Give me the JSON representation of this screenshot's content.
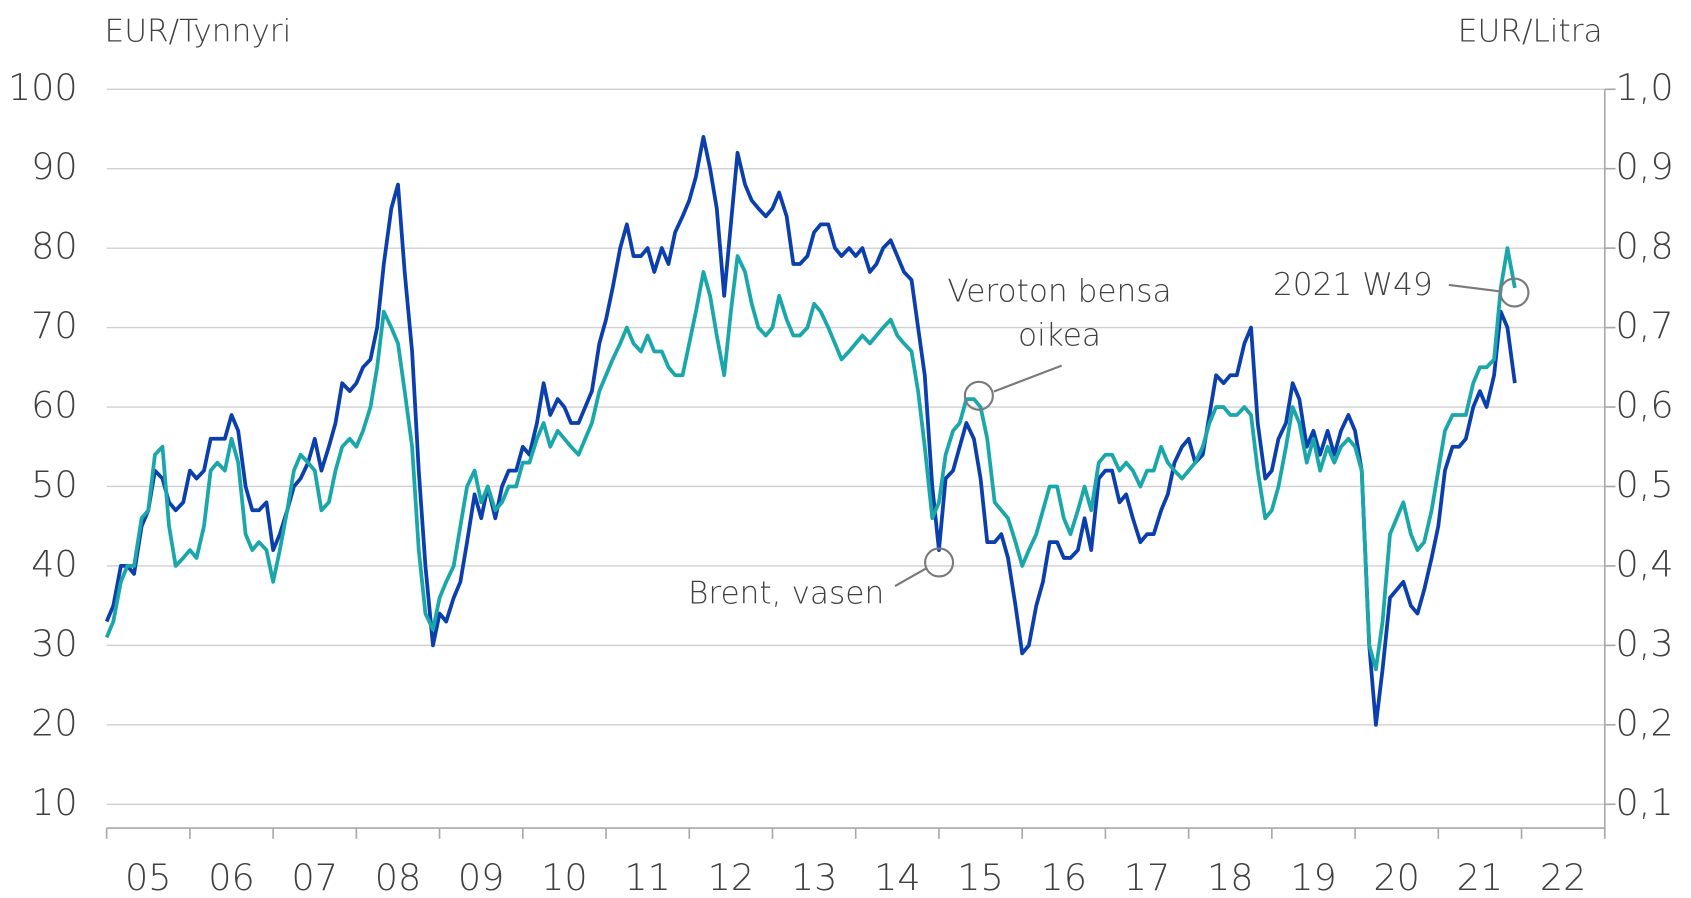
{
  "chart_data": {
    "type": "line",
    "y_label": "EUR/Tynnyri",
    "y2_label": "EUR/Litra",
    "xlim": [
      2005,
      2023
    ],
    "xticks": [
      {
        "value": 2005,
        "label": "05"
      },
      {
        "value": 2006,
        "label": "06"
      },
      {
        "value": 2007,
        "label": "07"
      },
      {
        "value": 2008,
        "label": "08"
      },
      {
        "value": 2009,
        "label": "09"
      },
      {
        "value": 2010,
        "label": "10"
      },
      {
        "value": 2011,
        "label": "11"
      },
      {
        "value": 2012,
        "label": "12"
      },
      {
        "value": 2013,
        "label": "13"
      },
      {
        "value": 2014,
        "label": "14"
      },
      {
        "value": 2015,
        "label": "15"
      },
      {
        "value": 2016,
        "label": "16"
      },
      {
        "value": 2017,
        "label": "17"
      },
      {
        "value": 2018,
        "label": "18"
      },
      {
        "value": 2019,
        "label": "19"
      },
      {
        "value": 2020,
        "label": "20"
      },
      {
        "value": 2021,
        "label": "21"
      },
      {
        "value": 2022,
        "label": "22"
      }
    ],
    "ylim": [
      7,
      100
    ],
    "yticks": [
      10,
      20,
      30,
      40,
      50,
      60,
      70,
      80,
      90,
      100
    ],
    "y2lim": [
      0.07,
      1.0
    ],
    "y2ticks": [
      {
        "value": 0.1,
        "label": "0,1"
      },
      {
        "value": 0.2,
        "label": "0,2"
      },
      {
        "value": 0.3,
        "label": "0,3"
      },
      {
        "value": 0.4,
        "label": "0,4"
      },
      {
        "value": 0.5,
        "label": "0,5"
      },
      {
        "value": 0.6,
        "label": "0,6"
      },
      {
        "value": 0.7,
        "label": "0,7"
      },
      {
        "value": 0.8,
        "label": "0,8"
      },
      {
        "value": 0.9,
        "label": "0,9"
      },
      {
        "value": 1.0,
        "label": "1,0"
      }
    ],
    "grid": true,
    "x": [
      2005.0,
      2005.08,
      2005.17,
      2005.25,
      2005.33,
      2005.42,
      2005.5,
      2005.58,
      2005.67,
      2005.75,
      2005.83,
      2005.92,
      2006.0,
      2006.08,
      2006.17,
      2006.25,
      2006.33,
      2006.42,
      2006.5,
      2006.58,
      2006.67,
      2006.75,
      2006.83,
      2006.92,
      2007.0,
      2007.08,
      2007.17,
      2007.25,
      2007.33,
      2007.42,
      2007.5,
      2007.58,
      2007.67,
      2007.75,
      2007.83,
      2007.92,
      2008.0,
      2008.08,
      2008.17,
      2008.25,
      2008.33,
      2008.42,
      2008.5,
      2008.58,
      2008.67,
      2008.75,
      2008.83,
      2008.92,
      2009.0,
      2009.08,
      2009.17,
      2009.25,
      2009.33,
      2009.42,
      2009.5,
      2009.58,
      2009.67,
      2009.75,
      2009.83,
      2009.92,
      2010.0,
      2010.08,
      2010.17,
      2010.25,
      2010.33,
      2010.42,
      2010.5,
      2010.58,
      2010.67,
      2010.75,
      2010.83,
      2010.92,
      2011.0,
      2011.08,
      2011.17,
      2011.25,
      2011.33,
      2011.42,
      2011.5,
      2011.58,
      2011.67,
      2011.75,
      2011.83,
      2011.92,
      2012.0,
      2012.08,
      2012.17,
      2012.25,
      2012.33,
      2012.42,
      2012.5,
      2012.58,
      2012.67,
      2012.75,
      2012.83,
      2012.92,
      2013.0,
      2013.08,
      2013.17,
      2013.25,
      2013.33,
      2013.42,
      2013.5,
      2013.58,
      2013.67,
      2013.75,
      2013.83,
      2013.92,
      2014.0,
      2014.08,
      2014.17,
      2014.25,
      2014.33,
      2014.42,
      2014.5,
      2014.58,
      2014.67,
      2014.75,
      2014.83,
      2014.92,
      2015.0,
      2015.08,
      2015.17,
      2015.25,
      2015.33,
      2015.42,
      2015.5,
      2015.58,
      2015.67,
      2015.75,
      2015.83,
      2015.92,
      2016.0,
      2016.08,
      2016.17,
      2016.25,
      2016.33,
      2016.42,
      2016.5,
      2016.58,
      2016.67,
      2016.75,
      2016.83,
      2016.92,
      2017.0,
      2017.08,
      2017.17,
      2017.25,
      2017.33,
      2017.42,
      2017.5,
      2017.58,
      2017.67,
      2017.75,
      2017.83,
      2017.92,
      2018.0,
      2018.08,
      2018.17,
      2018.25,
      2018.33,
      2018.42,
      2018.5,
      2018.58,
      2018.67,
      2018.75,
      2018.83,
      2018.92,
      2019.0,
      2019.08,
      2019.17,
      2019.25,
      2019.33,
      2019.42,
      2019.5,
      2019.58,
      2019.67,
      2019.75,
      2019.83,
      2019.92,
      2020.0,
      2020.08,
      2020.17,
      2020.25,
      2020.33,
      2020.42,
      2020.5,
      2020.58,
      2020.67,
      2020.75,
      2020.83,
      2020.92,
      2021.0,
      2021.08,
      2021.17,
      2021.25,
      2021.33,
      2021.42,
      2021.5,
      2021.58,
      2021.67,
      2021.75,
      2021.83,
      2021.92
    ],
    "series": [
      {
        "color": "#0b3fae",
        "axis": "y",
        "values": [
          33,
          35,
          40,
          40,
          39,
          45,
          47,
          52,
          51,
          48,
          47,
          48,
          52,
          51,
          52,
          56,
          56,
          56,
          59,
          57,
          50,
          47,
          47,
          48,
          42,
          44,
          47,
          50,
          51,
          53,
          56,
          52,
          55,
          58,
          63,
          62,
          63,
          65,
          66,
          70,
          78,
          85,
          88,
          77,
          67,
          52,
          40,
          30,
          34,
          33,
          36,
          38,
          43,
          49,
          46,
          50,
          46,
          50,
          52,
          52,
          55,
          54,
          58,
          63,
          59,
          61,
          60,
          58,
          58,
          60,
          62,
          68,
          71,
          75,
          80,
          83,
          79,
          79,
          80,
          77,
          80,
          78,
          82,
          84,
          86,
          89,
          94,
          90,
          85,
          74,
          83,
          92,
          88,
          86,
          85,
          84,
          85,
          87,
          84,
          78,
          78,
          79,
          82,
          83,
          83,
          80,
          79,
          80,
          79,
          80,
          77,
          78,
          80,
          81,
          79,
          77,
          76,
          70,
          64,
          50,
          42,
          51,
          52,
          55,
          58,
          56,
          51,
          43,
          43,
          44,
          41,
          35,
          29,
          30,
          35,
          38,
          43,
          43,
          41,
          41,
          42,
          46,
          42,
          51,
          52,
          52,
          48,
          49,
          46,
          43,
          44,
          44,
          47,
          49,
          53,
          55,
          56,
          53,
          54,
          59,
          64,
          63,
          64,
          64,
          68,
          70,
          58,
          51,
          52,
          56,
          58,
          63,
          61,
          55,
          57,
          54,
          57,
          54,
          57,
          59,
          57,
          52,
          30,
          20,
          27,
          36,
          37,
          38,
          35,
          34,
          37,
          41,
          45,
          52,
          55,
          55,
          56,
          60,
          62,
          60,
          64,
          72,
          70,
          63
        ]
      },
      {
        "color": "#1aa7aa",
        "axis": "y2",
        "values": [
          0.31,
          0.33,
          0.38,
          0.4,
          0.4,
          0.46,
          0.47,
          0.54,
          0.55,
          0.45,
          0.4,
          0.41,
          0.42,
          0.41,
          0.45,
          0.52,
          0.53,
          0.52,
          0.56,
          0.53,
          0.44,
          0.42,
          0.43,
          0.42,
          0.38,
          0.42,
          0.47,
          0.52,
          0.54,
          0.53,
          0.52,
          0.47,
          0.48,
          0.52,
          0.55,
          0.56,
          0.55,
          0.57,
          0.6,
          0.65,
          0.72,
          0.7,
          0.68,
          0.62,
          0.55,
          0.42,
          0.34,
          0.32,
          0.36,
          0.38,
          0.4,
          0.45,
          0.5,
          0.52,
          0.48,
          0.5,
          0.47,
          0.48,
          0.5,
          0.5,
          0.53,
          0.53,
          0.56,
          0.58,
          0.55,
          0.57,
          0.56,
          0.55,
          0.54,
          0.56,
          0.58,
          0.62,
          0.64,
          0.66,
          0.68,
          0.7,
          0.68,
          0.67,
          0.69,
          0.67,
          0.67,
          0.65,
          0.64,
          0.64,
          0.68,
          0.72,
          0.77,
          0.74,
          0.69,
          0.64,
          0.72,
          0.79,
          0.77,
          0.73,
          0.7,
          0.69,
          0.7,
          0.74,
          0.71,
          0.69,
          0.69,
          0.7,
          0.73,
          0.72,
          0.7,
          0.68,
          0.66,
          0.67,
          0.68,
          0.69,
          0.68,
          0.69,
          0.7,
          0.71,
          0.69,
          0.68,
          0.67,
          0.62,
          0.55,
          0.46,
          0.48,
          0.54,
          0.57,
          0.58,
          0.61,
          0.61,
          0.6,
          0.56,
          0.48,
          0.47,
          0.46,
          0.43,
          0.4,
          0.42,
          0.44,
          0.47,
          0.5,
          0.5,
          0.46,
          0.44,
          0.47,
          0.5,
          0.47,
          0.53,
          0.54,
          0.54,
          0.52,
          0.53,
          0.52,
          0.5,
          0.52,
          0.52,
          0.55,
          0.53,
          0.52,
          0.51,
          0.52,
          0.53,
          0.55,
          0.58,
          0.6,
          0.6,
          0.59,
          0.59,
          0.6,
          0.59,
          0.52,
          0.46,
          0.47,
          0.5,
          0.55,
          0.6,
          0.58,
          0.53,
          0.56,
          0.52,
          0.55,
          0.53,
          0.55,
          0.56,
          0.55,
          0.52,
          0.3,
          0.27,
          0.33,
          0.44,
          0.46,
          0.48,
          0.44,
          0.42,
          0.43,
          0.47,
          0.52,
          0.57,
          0.59,
          0.59,
          0.59,
          0.63,
          0.65,
          0.65,
          0.66,
          0.75,
          0.8,
          0.75
        ]
      }
    ],
    "annotations": [
      {
        "lines": [
          "Brent, vasen"
        ]
      },
      {
        "lines": [
          "Veroton bensa",
          "oikea"
        ]
      },
      {
        "lines": [
          "2021 W49"
        ]
      }
    ]
  }
}
